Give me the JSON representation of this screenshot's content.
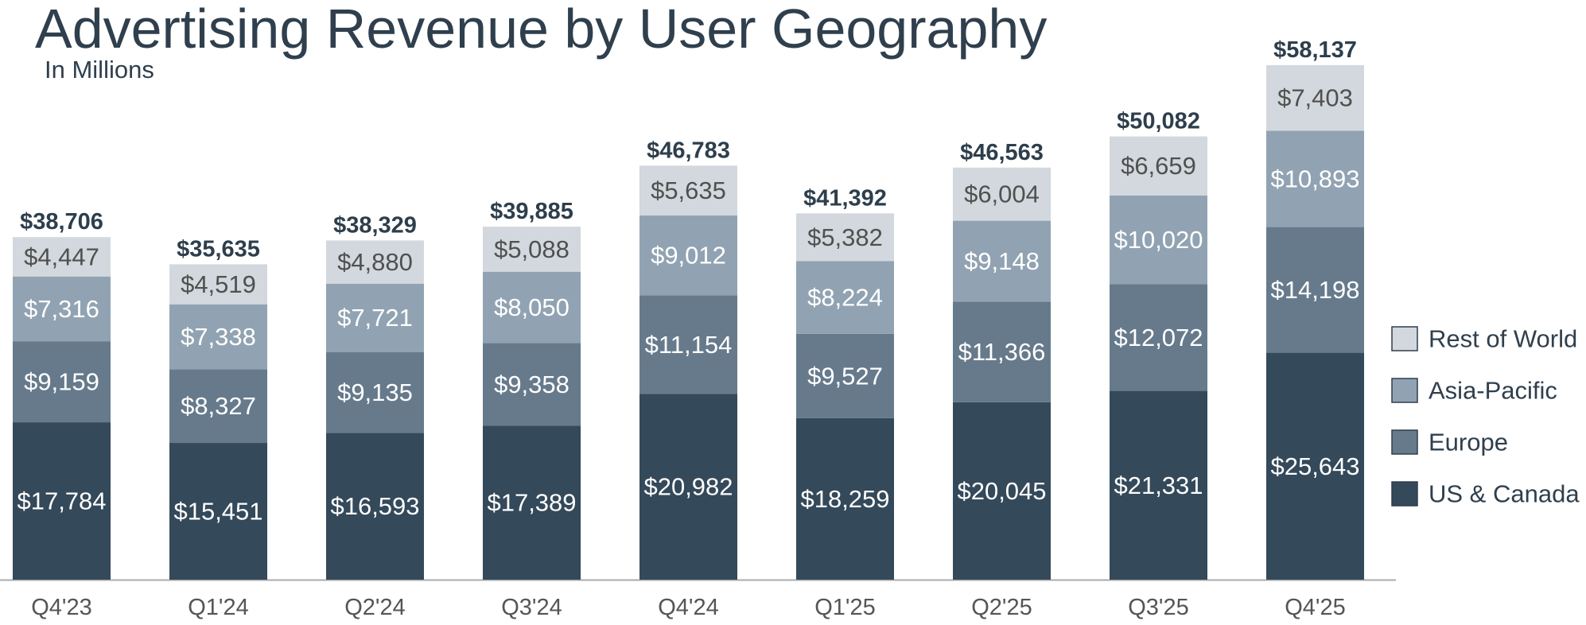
{
  "chart_data": {
    "type": "bar",
    "stacked": true,
    "title": "Advertising Revenue by User Geography",
    "subtitle": "In Millions",
    "xlabel": "",
    "ylabel": "",
    "categories": [
      "Q4'23",
      "Q1'24",
      "Q2'24",
      "Q3'24",
      "Q4'24",
      "Q1'25",
      "Q2'25",
      "Q3'25",
      "Q4'25"
    ],
    "series": [
      {
        "name": "US & Canada",
        "color": "#34495a",
        "label_color": "#ffffff",
        "values": [
          17784,
          15451,
          16593,
          17389,
          20982,
          18259,
          20045,
          21331,
          25643
        ]
      },
      {
        "name": "Europe",
        "color": "#667a8c",
        "label_color": "#ffffff",
        "values": [
          9159,
          8327,
          9135,
          9358,
          11154,
          9527,
          11366,
          12072,
          14198
        ]
      },
      {
        "name": "Asia-Pacific",
        "color": "#91a3b2",
        "label_color": "#ffffff",
        "values": [
          7316,
          7338,
          7721,
          8050,
          9012,
          8224,
          9148,
          10020,
          10893
        ]
      },
      {
        "name": "Rest of World",
        "color": "#d2d8dd",
        "label_color": "#505050",
        "values": [
          4447,
          4519,
          4880,
          5088,
          5635,
          5382,
          6004,
          6659,
          7403
        ]
      }
    ],
    "totals": [
      38706,
      35635,
      38329,
      39885,
      46783,
      41392,
      46563,
      50082,
      58137
    ],
    "value_prefix": "$",
    "legend_order": [
      "Rest of World",
      "Asia-Pacific",
      "Europe",
      "US & Canada"
    ],
    "legend_position": "right",
    "grid": false,
    "ylim": [
      0,
      60000
    ]
  }
}
